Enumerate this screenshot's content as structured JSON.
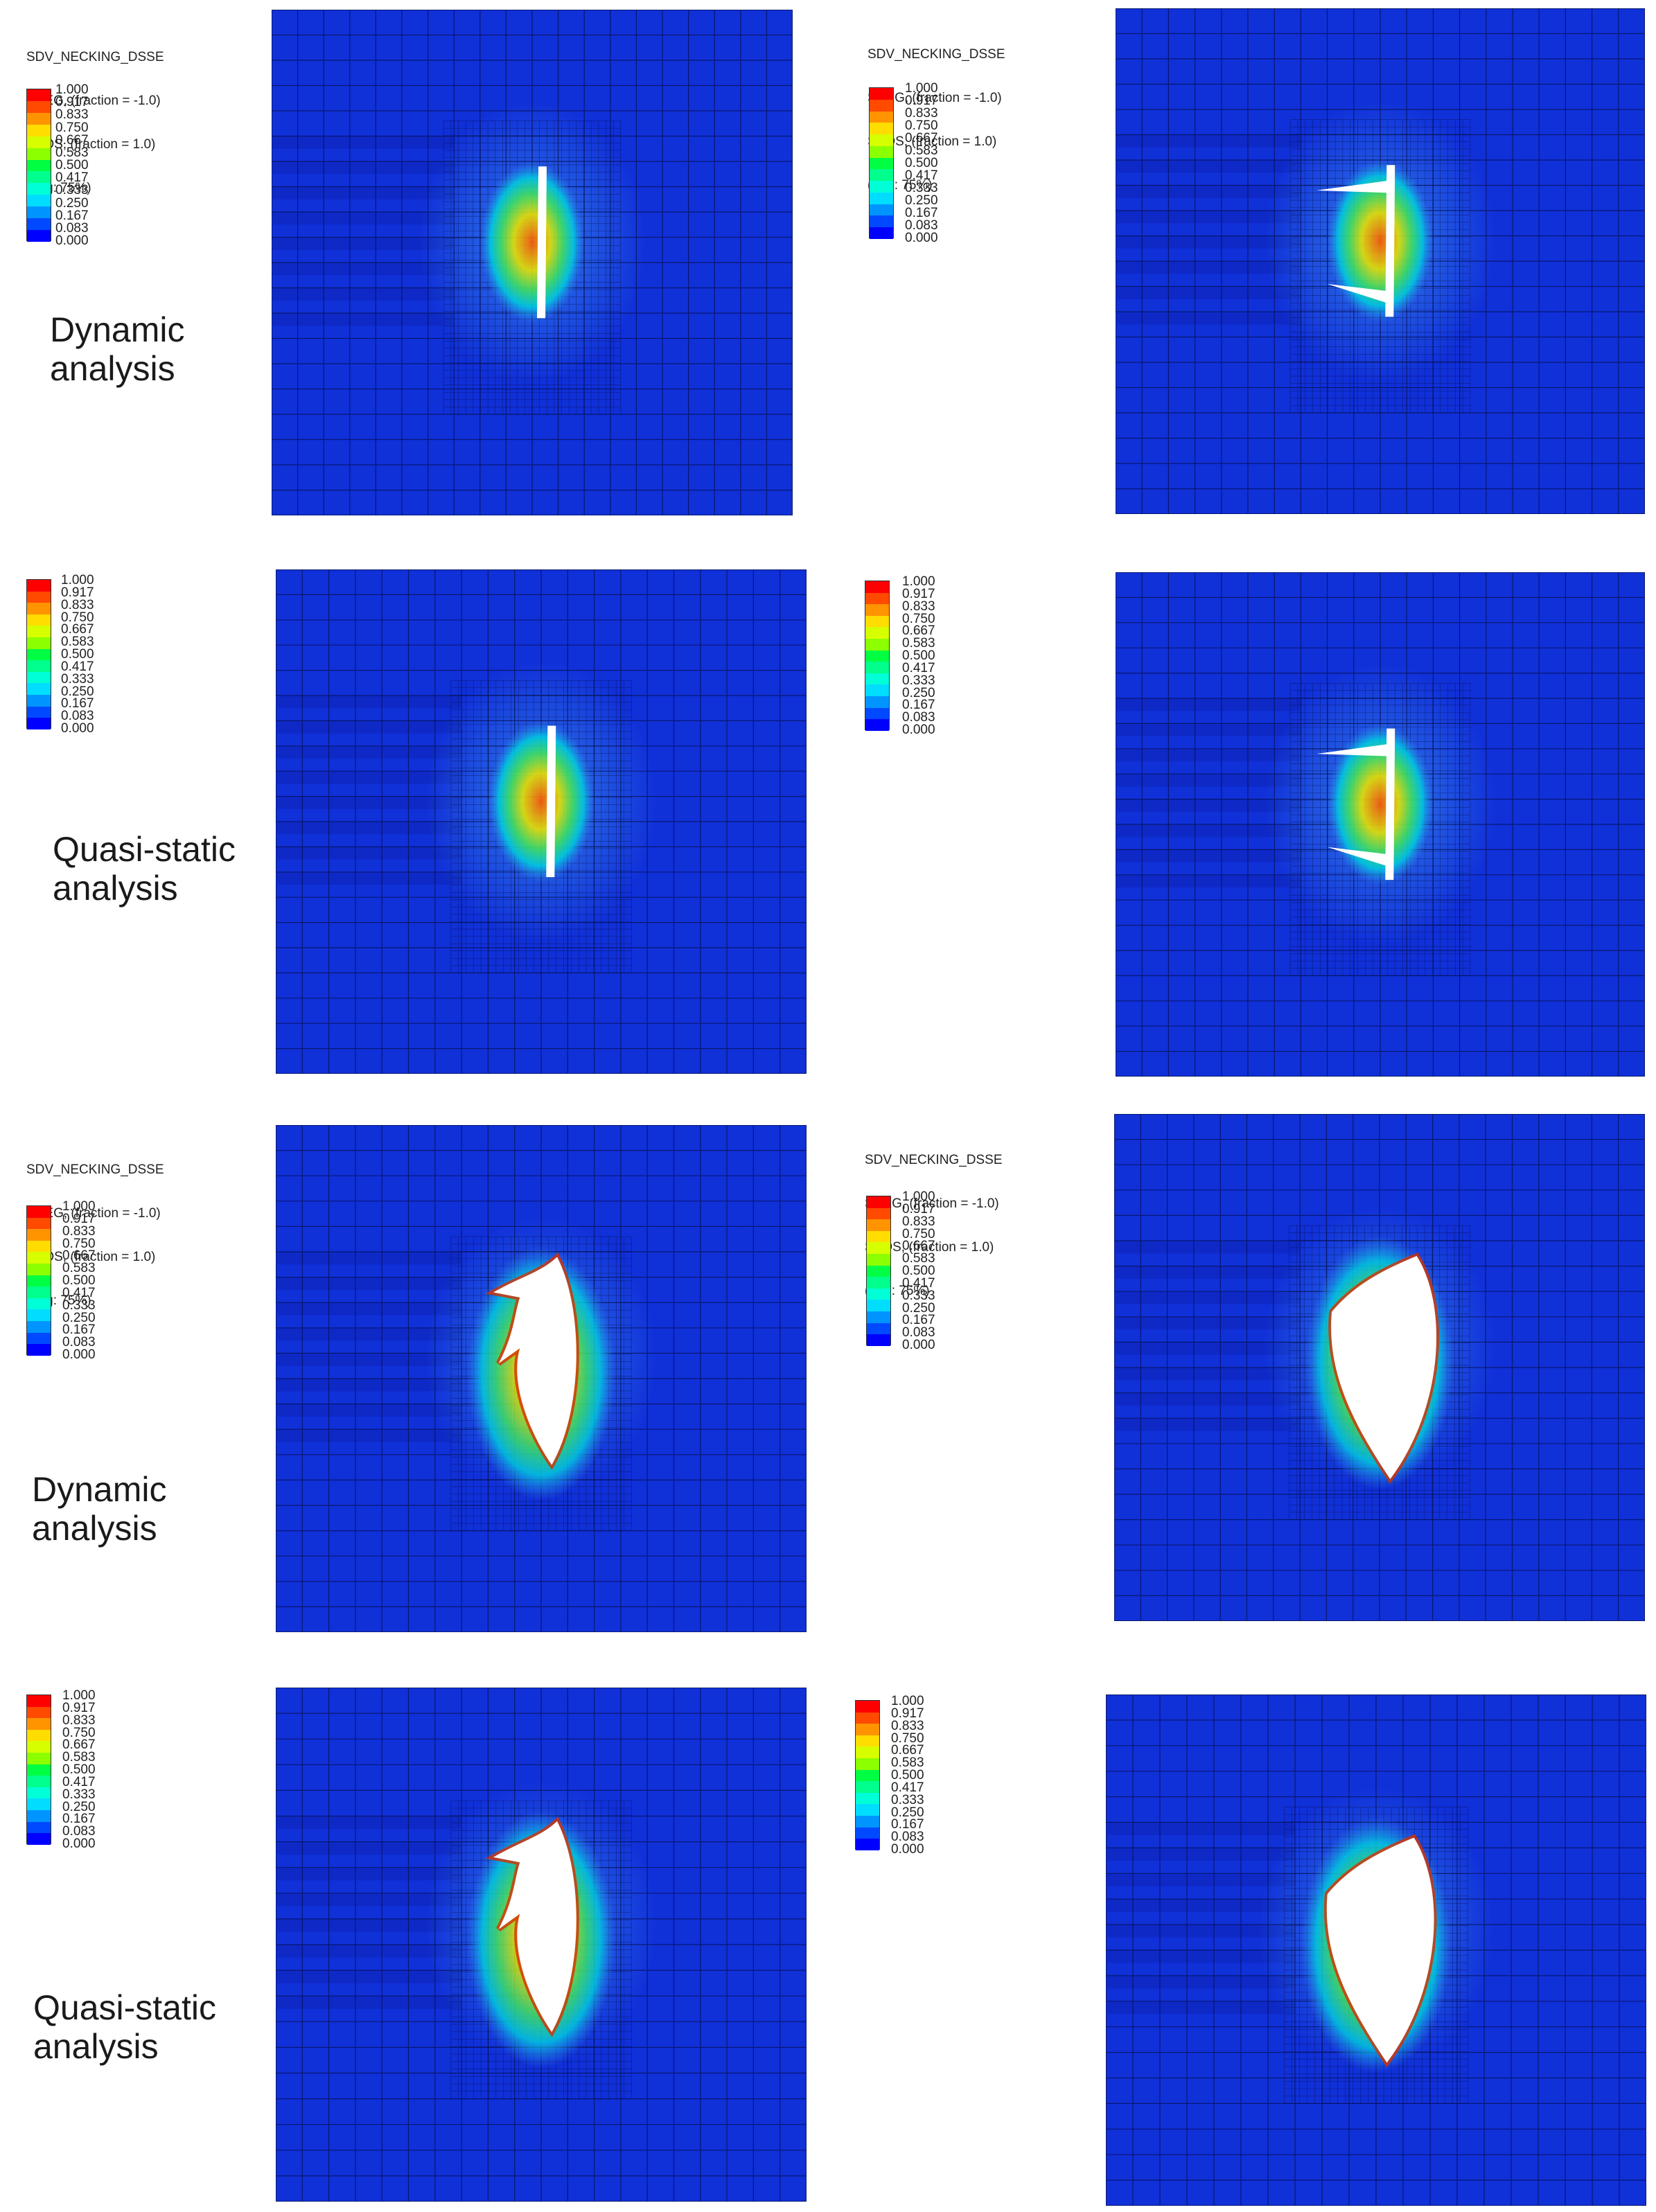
{
  "legend": {
    "header": [
      "SDV_NECKING_DSSE",
      "SNEG, (fraction = -1.0)",
      "SPOS, (fraction = 1.0)",
      "(Avg: 75%)"
    ],
    "ticks": [
      "1.000",
      "0.917",
      "0.833",
      "0.750",
      "0.667",
      "0.583",
      "0.500",
      "0.417",
      "0.333",
      "0.250",
      "0.167",
      "0.083",
      "0.000"
    ],
    "colors": [
      "#ff0000",
      "#ff4a00",
      "#ff9400",
      "#ffdd00",
      "#d6ff00",
      "#8cff00",
      "#00ff43",
      "#00ff8c",
      "#00ffd6",
      "#00ddff",
      "#0094ff",
      "#0049ff",
      "#0000ff"
    ]
  },
  "labels": {
    "dynamic_1": [
      "Dynamic",
      "analysis"
    ],
    "quasi_1": [
      "Quasi-static",
      "analysis"
    ],
    "dynamic_2": [
      "Dynamic",
      "analysis"
    ],
    "quasi_2": [
      "Quasi-static",
      "analysis"
    ]
  },
  "panels": [
    {
      "id": "p1",
      "has_header": true,
      "hole": "slit"
    },
    {
      "id": "p2",
      "has_header": true,
      "hole": "slit-branched"
    },
    {
      "id": "p3",
      "has_header": false,
      "hole": "slit"
    },
    {
      "id": "p4",
      "has_header": false,
      "hole": "slit-branched"
    },
    {
      "id": "p5",
      "has_header": true,
      "hole": "open-petal"
    },
    {
      "id": "p6",
      "has_header": true,
      "hole": "open-large"
    },
    {
      "id": "p7",
      "has_header": false,
      "hole": "open-petal"
    },
    {
      "id": "p8",
      "has_header": false,
      "hole": "open-large"
    }
  ],
  "plate_colors": {
    "base": "#1030d8",
    "dark": "#0c22b4",
    "glow": "#3a8cf0"
  }
}
